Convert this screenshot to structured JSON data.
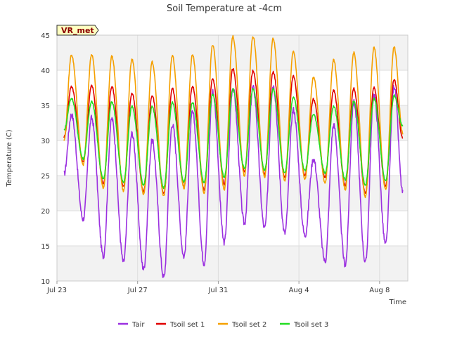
{
  "chart_data": {
    "type": "line",
    "title": "Soil Temperature at -4cm",
    "xlabel": "Time",
    "ylabel": "Temperature (C)",
    "ylim": [
      10,
      45
    ],
    "xlim_days": [
      0,
      17.4
    ],
    "yticks": [
      "10",
      "15",
      "20",
      "25",
      "30",
      "35",
      "40",
      "45"
    ],
    "xticks": [
      {
        "label": "Jul 23",
        "day": 0
      },
      {
        "label": "Jul 27",
        "day": 4
      },
      {
        "label": "Jul 31",
        "day": 8
      },
      {
        "label": "Aug 4",
        "day": 12
      },
      {
        "label": "Aug 8",
        "day": 16
      }
    ],
    "grid": true,
    "band_fill": "#f2f2f2",
    "legend_position": "bottom",
    "badge": "VR_met",
    "series": [
      {
        "name": "Tair",
        "color": "#9b30e0",
        "start": 25.2,
        "end": 22.6,
        "max": [
          33.7,
          33.2,
          33.1,
          31.0,
          30.0,
          32.3,
          34.0,
          37.0,
          37.5,
          37.6,
          37.8,
          34.4,
          27.4,
          32.2,
          35.5,
          36.5,
          37.8
        ],
        "min": [
          18.8,
          13.5,
          12.7,
          11.7,
          10.5,
          13.5,
          12.5,
          15.5,
          18.2,
          17.5,
          16.8,
          16.5,
          12.8,
          12.3,
          12.6,
          15.2,
          14.0
        ]
      },
      {
        "name": "Tsoil set 1",
        "color": "#e00000",
        "start": 30.5,
        "end": 30.3,
        "max": [
          37.7,
          37.8,
          37.7,
          36.7,
          36.4,
          37.4,
          37.7,
          38.8,
          40.2,
          39.9,
          39.8,
          39.2,
          35.9,
          37.1,
          37.4,
          37.5,
          38.7
        ],
        "min": [
          27.0,
          23.8,
          23.5,
          22.7,
          22.5,
          23.5,
          23.0,
          23.8,
          25.5,
          25.2,
          24.7,
          25.0,
          24.8,
          23.6,
          22.5,
          23.5,
          23.6
        ]
      },
      {
        "name": "Tsoil set 2",
        "color": "#f5a000",
        "start": 30.0,
        "end": 31.0,
        "max": [
          42.2,
          42.2,
          42.0,
          41.6,
          41.2,
          42.1,
          42.2,
          43.6,
          44.8,
          44.8,
          44.5,
          42.7,
          39.0,
          41.5,
          42.5,
          43.2,
          43.3
        ],
        "min": [
          26.5,
          23.2,
          22.8,
          22.3,
          22.1,
          23.2,
          22.5,
          23.0,
          25.0,
          24.8,
          24.3,
          24.5,
          24.0,
          23.0,
          22.0,
          23.0,
          23.0
        ]
      },
      {
        "name": "Tsoil set 3",
        "color": "#22dd22",
        "start": 31.5,
        "end": 32.0,
        "max": [
          36.0,
          35.6,
          35.5,
          34.9,
          34.8,
          35.4,
          35.4,
          36.5,
          37.3,
          37.3,
          37.3,
          36.2,
          33.8,
          34.9,
          35.6,
          36.0,
          36.4
        ],
        "min": [
          27.4,
          24.5,
          24.0,
          23.6,
          23.3,
          24.1,
          24.0,
          24.8,
          26.0,
          25.8,
          25.4,
          25.7,
          25.4,
          24.4,
          23.6,
          24.3,
          24.4
        ]
      }
    ]
  }
}
